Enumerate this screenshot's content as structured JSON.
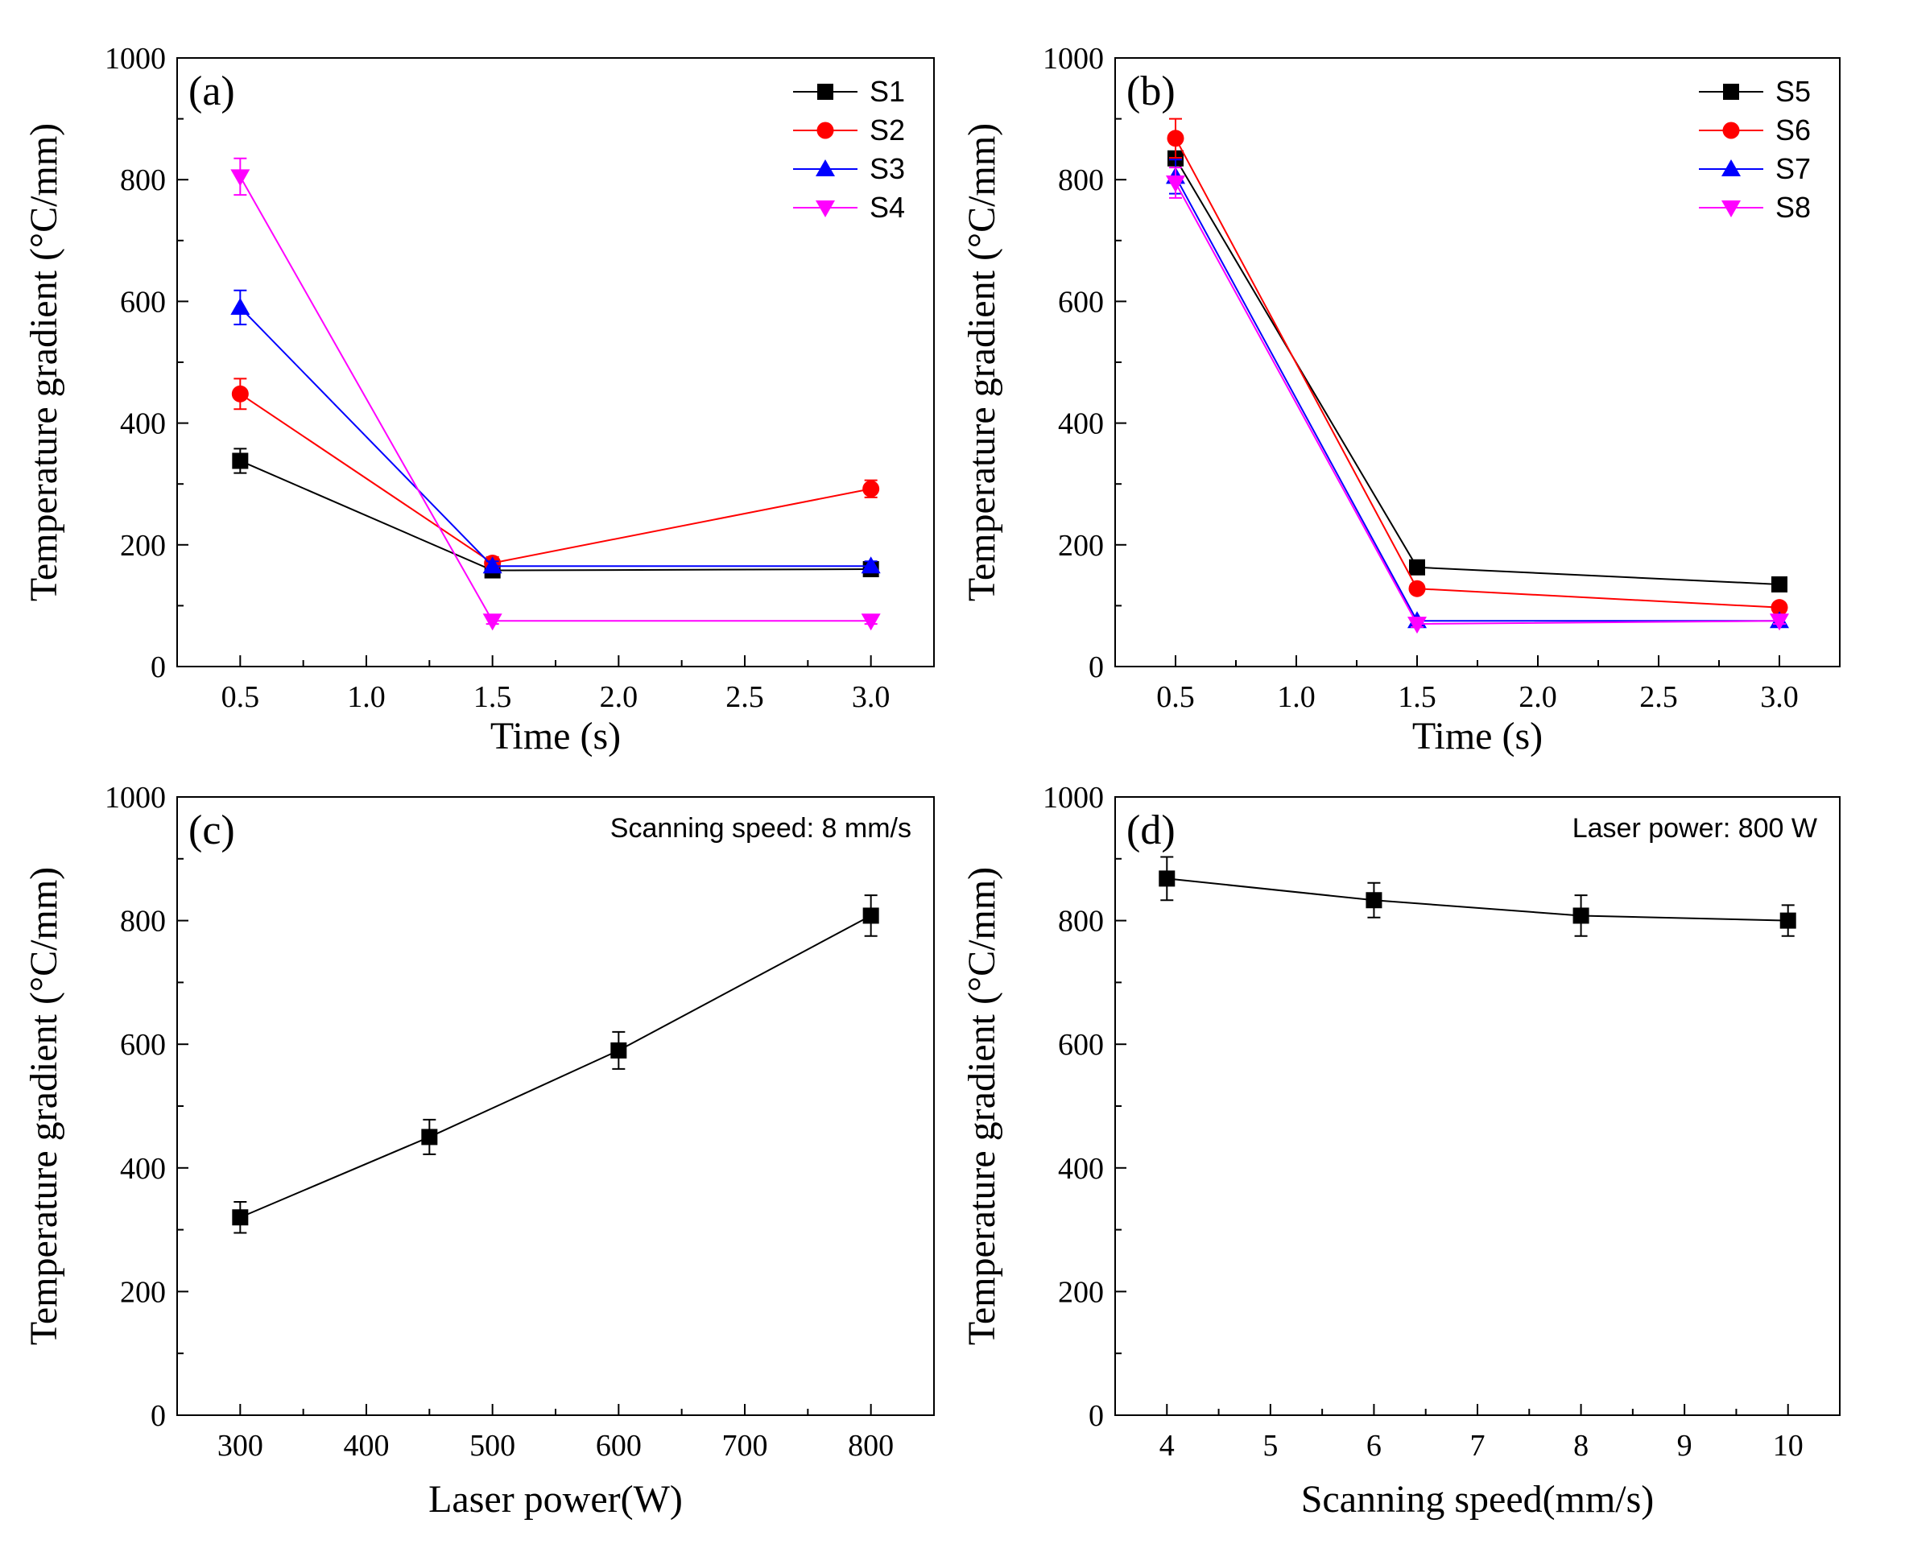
{
  "chart_data": [
    {
      "panel_label": "(a)",
      "type": "line",
      "xlabel": "Time (s)",
      "ylabel": "Temperature gradient (°C/mm)",
      "xlim": [
        0.25,
        3.25
      ],
      "ylim": [
        0,
        1000
      ],
      "xticks": [
        "0.5",
        "1.0",
        "1.5",
        "2.0",
        "2.5",
        "3.0"
      ],
      "yticks": [
        "0",
        "200",
        "400",
        "600",
        "800",
        "1000"
      ],
      "legend_position": "top-right",
      "annotation": "",
      "x": [
        0.5,
        1.5,
        3.0
      ],
      "series": [
        {
          "name": "S1",
          "color": "#000000",
          "marker": "square",
          "values": [
            338,
            158,
            160
          ],
          "errors": [
            20,
            8,
            8
          ]
        },
        {
          "name": "S2",
          "color": "#ff0000",
          "marker": "circle",
          "values": [
            448,
            170,
            292
          ],
          "errors": [
            25,
            10,
            14
          ]
        },
        {
          "name": "S3",
          "color": "#0000ff",
          "marker": "triangle-up",
          "values": [
            590,
            165,
            165
          ],
          "errors": [
            28,
            8,
            8
          ]
        },
        {
          "name": "S4",
          "color": "#ff00ff",
          "marker": "triangle-down",
          "values": [
            805,
            75,
            75
          ],
          "errors": [
            30,
            5,
            5
          ]
        }
      ]
    },
    {
      "panel_label": "(b)",
      "type": "line",
      "xlabel": "Time (s)",
      "ylabel": "Temperature gradient (°C/mm)",
      "xlim": [
        0.25,
        3.25
      ],
      "ylim": [
        0,
        1000
      ],
      "xticks": [
        "0.5",
        "1.0",
        "1.5",
        "2.0",
        "2.5",
        "3.0"
      ],
      "yticks": [
        "0",
        "200",
        "400",
        "600",
        "800",
        "1000"
      ],
      "legend_position": "top-right",
      "annotation": "",
      "x": [
        0.5,
        1.5,
        3.0
      ],
      "series": [
        {
          "name": "S5",
          "color": "#000000",
          "marker": "square",
          "values": [
            835,
            163,
            135
          ],
          "errors": [
            30,
            5,
            5
          ]
        },
        {
          "name": "S6",
          "color": "#ff0000",
          "marker": "circle",
          "values": [
            868,
            128,
            97
          ],
          "errors": [
            32,
            5,
            5
          ]
        },
        {
          "name": "S7",
          "color": "#0000ff",
          "marker": "triangle-up",
          "values": [
            805,
            75,
            75
          ],
          "errors": [
            28,
            5,
            5
          ]
        },
        {
          "name": "S8",
          "color": "#ff00ff",
          "marker": "triangle-down",
          "values": [
            795,
            70,
            75
          ],
          "errors": [
            25,
            5,
            5
          ]
        }
      ]
    },
    {
      "panel_label": "(c)",
      "type": "line",
      "xlabel": "Laser power(W)",
      "ylabel": "Temperature gradient (°C/mm)",
      "xlim": [
        250,
        850
      ],
      "ylim": [
        0,
        1000
      ],
      "xticks": [
        "300",
        "400",
        "500",
        "600",
        "700",
        "800"
      ],
      "yticks": [
        "0",
        "200",
        "400",
        "600",
        "800",
        "1000"
      ],
      "legend_position": "",
      "annotation": "Scanning speed: 8 mm/s",
      "x": [
        300,
        450,
        600,
        800
      ],
      "series": [
        {
          "name": "",
          "color": "#000000",
          "marker": "square",
          "values": [
            320,
            450,
            590,
            808
          ],
          "errors": [
            25,
            28,
            30,
            33
          ]
        }
      ]
    },
    {
      "panel_label": "(d)",
      "type": "line",
      "xlabel": "Scanning speed(mm/s)",
      "ylabel": "Temperature gradient (°C/mm)",
      "xlim": [
        3.5,
        10.5
      ],
      "ylim": [
        0,
        1000
      ],
      "xticks": [
        "4",
        "5",
        "6",
        "7",
        "8",
        "9",
        "10"
      ],
      "yticks": [
        "0",
        "200",
        "400",
        "600",
        "800",
        "1000"
      ],
      "legend_position": "",
      "annotation": "Laser power: 800 W",
      "x": [
        4,
        6,
        8,
        10
      ],
      "series": [
        {
          "name": "",
          "color": "#000000",
          "marker": "square",
          "values": [
            868,
            833,
            808,
            800
          ],
          "errors": [
            35,
            28,
            33,
            25
          ]
        }
      ]
    }
  ]
}
